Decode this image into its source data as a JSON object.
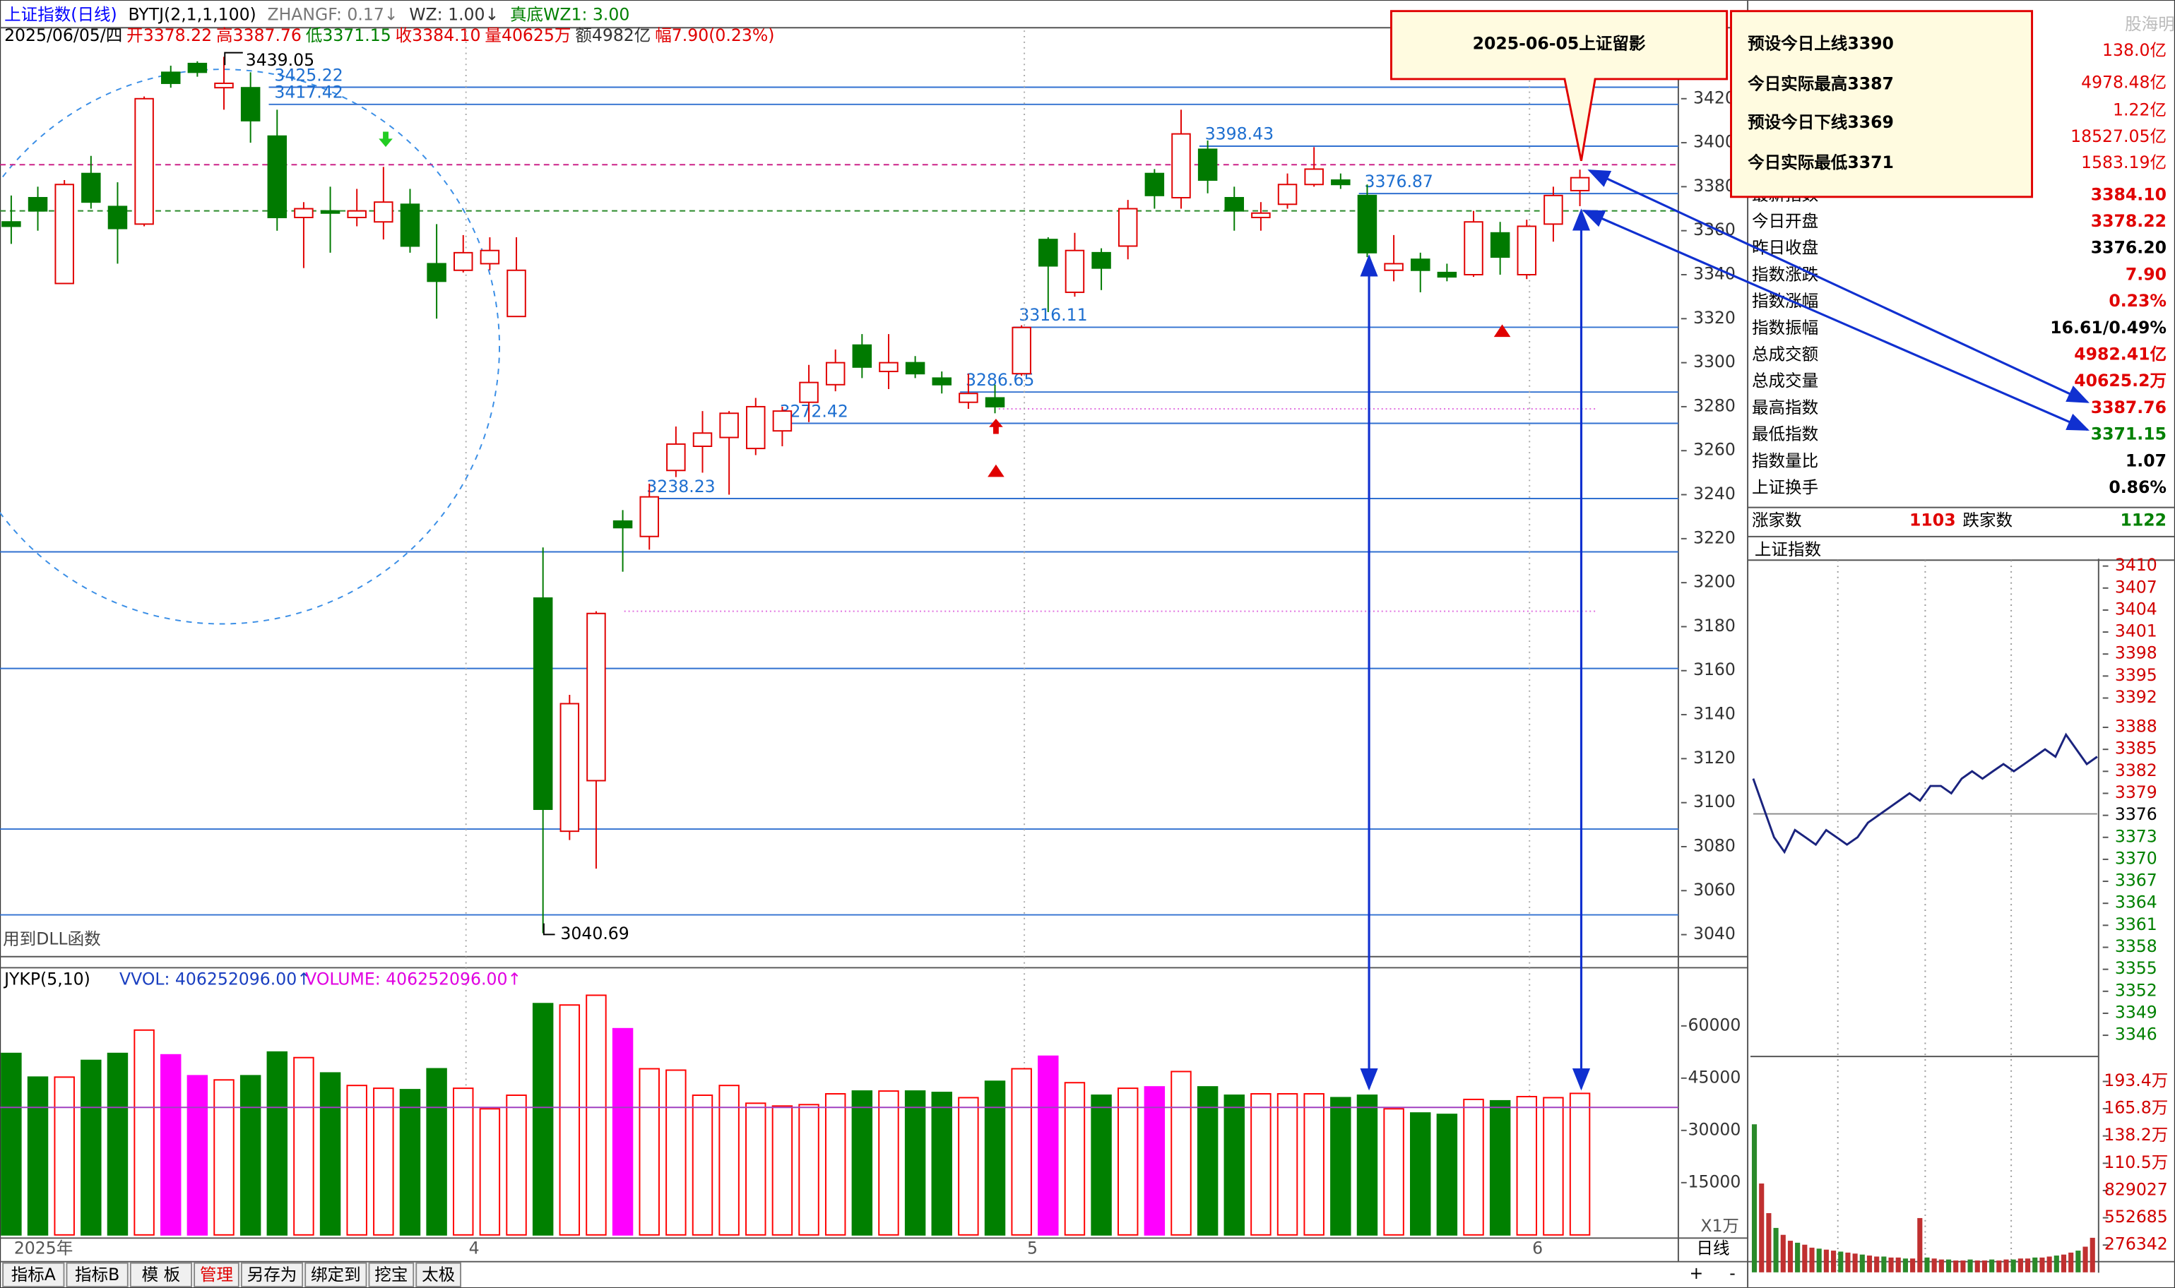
{
  "header": {
    "title": "上证指数(日线)",
    "indicators": [
      "BYTJ(2,1,1,100)",
      "ZHANGF: 0.17↓",
      "WZ: 1.00↓",
      "真底WZ1: 3.00"
    ],
    "date": "2025/06/05/四",
    "quote": [
      "开3378.22",
      "高3387.76",
      "低3371.15",
      "收3384.10",
      "量40625万",
      "额4982亿",
      "幅7.90(0.23%)"
    ],
    "dll_note": "用到DLL函数"
  },
  "annotation": {
    "title": "2025-06-05上证留影",
    "lines": [
      "预设今日上线3390",
      "今日实际最高3387",
      "预设今日下线3369",
      "今日实际最低3371"
    ]
  },
  "chart_data": [
    {
      "type": "candlestick",
      "open": [
        3364,
        3375,
        3336,
        3386,
        3371,
        3363,
        3432,
        3436,
        3425,
        3425,
        3403,
        3366,
        3369,
        3366,
        3364,
        3372,
        3345,
        3342,
        3345,
        3321,
        3193,
        3087,
        3110,
        3228,
        3221,
        3251,
        3262,
        3266,
        3261,
        3269,
        3282,
        3290,
        3308,
        3296,
        3300,
        3293,
        3282,
        3284,
        3295,
        3356,
        3332,
        3350,
        3353,
        3386,
        3375,
        3397,
        3375,
        3366,
        3372,
        3381,
        3383,
        3376,
        3342,
        3347,
        3341,
        3340,
        3359,
        3340,
        3363,
        3378.22
      ],
      "high": [
        3376,
        3380,
        3383,
        3394,
        3382,
        3421,
        3435,
        3437,
        3439.05,
        3432,
        3415,
        3373,
        3380,
        3379,
        3389,
        3379,
        3363,
        3358,
        3357,
        3357,
        3216,
        3149,
        3187,
        3233,
        3245,
        3271,
        3278,
        3278,
        3284,
        3280,
        3299,
        3306,
        3313,
        3313,
        3303,
        3296,
        3295,
        3290,
        3317,
        3357,
        3359,
        3352,
        3374,
        3388,
        3415,
        3401,
        3380,
        3373,
        3386,
        3398,
        3386,
        3381,
        3358,
        3350,
        3345,
        3369,
        3364,
        3365,
        3380,
        3387.76
      ],
      "low": [
        3354,
        3360,
        3336,
        3370,
        3345,
        3362,
        3425,
        3430,
        3415,
        3400,
        3360,
        3343,
        3350,
        3362,
        3356,
        3350,
        3320,
        3341,
        3342,
        3321,
        3040.69,
        3083,
        3070,
        3205,
        3215,
        3248,
        3250,
        3240,
        3258,
        3262,
        3273,
        3287,
        3293,
        3288,
        3293,
        3286,
        3279,
        3277,
        3294,
        3323,
        3330,
        3333,
        3347,
        3370,
        3370,
        3377,
        3360,
        3360,
        3370,
        3380,
        3379,
        3348,
        3337,
        3332,
        3337,
        3339,
        3340,
        3338,
        3355,
        3371.15
      ],
      "close": [
        3362,
        3369,
        3381,
        3373,
        3361,
        3420,
        3427,
        3432,
        3427,
        3410,
        3366,
        3370,
        3368,
        3369,
        3373,
        3353,
        3337,
        3350,
        3351,
        3342,
        3097,
        3145,
        3186,
        3225,
        3239,
        3263,
        3268,
        3277,
        3280,
        3278,
        3291,
        3300,
        3298,
        3300,
        3295,
        3290,
        3286,
        3280,
        3316,
        3344,
        3351,
        3343,
        3370,
        3376,
        3404,
        3383,
        3369,
        3368,
        3381,
        3388,
        3381,
        3350,
        3345,
        3342,
        3339,
        3364,
        3348,
        3362,
        3376,
        3384.1
      ],
      "up_color": "#e00000",
      "down_color": "#007a00",
      "ylim": [
        3030,
        3451
      ],
      "yticks": [
        3040,
        3060,
        3080,
        3100,
        3120,
        3140,
        3160,
        3180,
        3200,
        3220,
        3240,
        3260,
        3280,
        3300,
        3320,
        3340,
        3360,
        3380,
        3400,
        3420
      ],
      "level_lines": [
        3425.22,
        3417.42,
        3398.43,
        3376.87,
        3316.11,
        3286.65,
        3272.42,
        3238.23
      ],
      "plain_lines": [
        3214,
        3161,
        3088,
        3049
      ],
      "preset_lines": [
        3390,
        3369
      ],
      "preset_colors": [
        "#cc2288",
        "#2a8a2a"
      ],
      "dotted_lines": [
        3187,
        3279
      ],
      "x_labels": [
        "2025年",
        "4",
        "5",
        "6"
      ]
    },
    {
      "type": "bar",
      "title": "JYKP(5,10)",
      "legend": [
        "VVOL: 406252096.00↑",
        "VOLUME: 406252096.00↑"
      ],
      "unit": "X1万",
      "values": [
        52100,
        45300,
        45300,
        50100,
        52100,
        58800,
        51700,
        45700,
        44500,
        45700,
        52500,
        50900,
        46500,
        42900,
        42100,
        41700,
        47700,
        42100,
        36200,
        40100,
        66400,
        66000,
        68800,
        59200,
        47700,
        47300,
        40100,
        42900,
        37800,
        37000,
        37400,
        40500,
        41300,
        41300,
        41300,
        40900,
        39400,
        44100,
        47700,
        51300,
        43700,
        40100,
        42100,
        42500,
        46900,
        42500,
        40100,
        40500,
        40500,
        40500,
        39400,
        40100,
        36200,
        35000,
        34600,
        38900,
        38500,
        39700,
        39400,
        40625
      ],
      "colors": [
        "#008000",
        "#008000",
        "#ff0000",
        "#008000",
        "#008000",
        "#ff0000",
        "#ff00ff",
        "#ff00ff",
        "#ff0000",
        "#008000",
        "#008000",
        "#ff0000",
        "#008000",
        "#ff0000",
        "#ff0000",
        "#008000",
        "#008000",
        "#ff0000",
        "#ff0000",
        "#ff0000",
        "#008000",
        "#ff0000",
        "#ff0000",
        "#ff00ff",
        "#ff0000",
        "#ff0000",
        "#ff0000",
        "#ff0000",
        "#ff0000",
        "#ff0000",
        "#ff0000",
        "#ff0000",
        "#008000",
        "#ff0000",
        "#008000",
        "#008000",
        "#ff0000",
        "#008000",
        "#ff0000",
        "#ff00ff",
        "#ff0000",
        "#008000",
        "#ff0000",
        "#ff00ff",
        "#ff0000",
        "#008000",
        "#008000",
        "#ff0000",
        "#ff0000",
        "#ff0000",
        "#008000",
        "#008000",
        "#ff0000",
        "#008000",
        "#008000",
        "#ff0000",
        "#008000",
        "#ff0000",
        "#ff0000",
        "#ff0000"
      ],
      "ref_line": 36600,
      "ylim": [
        0,
        76700
      ],
      "yticks": [
        15000,
        30000,
        45000,
        60000
      ]
    },
    {
      "type": "line",
      "title": "上证指数",
      "color": "#1a237e",
      "values": [
        3381,
        3377,
        3373,
        3371,
        3374,
        3373,
        3372,
        3374,
        3373,
        3372,
        3373,
        3375,
        3376,
        3377,
        3378,
        3379,
        3378,
        3380,
        3380,
        3379,
        3381,
        3382,
        3381,
        3382,
        3383,
        3382,
        3383,
        3384,
        3385,
        3384,
        3387,
        3385,
        3383,
        3384
      ],
      "ref_line": 3376.2,
      "ylim": [
        3345,
        3411
      ],
      "yticks": [
        3410,
        3407,
        3404,
        3401,
        3398,
        3395,
        3392,
        3388,
        3385,
        3382,
        3379,
        3376,
        3373,
        3370,
        3367,
        3364,
        3361,
        3358,
        3355,
        3352,
        3349,
        3346
      ]
    },
    {
      "type": "bar",
      "color": "#c03030",
      "values": [
        1500000,
        900000,
        600000,
        450000,
        380000,
        320000,
        300000,
        280000,
        250000,
        240000,
        230000,
        220000,
        210000,
        200000,
        190000,
        180000,
        170000,
        160000,
        160000,
        150000,
        150000,
        140000,
        140000,
        550000,
        150000,
        140000,
        130000,
        130000,
        120000,
        120000,
        130000,
        120000,
        120000,
        130000,
        120000,
        130000,
        130000,
        140000,
        140000,
        150000,
        150000,
        160000,
        170000,
        180000,
        200000,
        220000,
        260000,
        350000
      ],
      "ylim": [
        0,
        2075000
      ],
      "yticks": [
        {
          "value": 1934000,
          "label": "193.4万"
        },
        {
          "value": 1658000,
          "label": "165.8万"
        },
        {
          "value": 1382000,
          "label": "138.2万"
        },
        {
          "value": 1105000,
          "label": "110.5万"
        },
        829027,
        552685,
        276342
      ]
    }
  ],
  "info_panel": {
    "watermark": "股海明灯",
    "top_values": [
      "138.0亿",
      "4978.48亿",
      "1.22亿",
      "18527.05亿",
      "1583.19亿"
    ],
    "rows": [
      {
        "label": "最新指数",
        "value": "3384.10",
        "color": "#e00000"
      },
      {
        "label": "今日开盘",
        "value": "3378.22",
        "color": "#e00000"
      },
      {
        "label": "昨日收盘",
        "value": "3376.20",
        "color": "#000000"
      },
      {
        "label": "指数涨跌",
        "value": "7.90",
        "color": "#e00000"
      },
      {
        "label": "指数涨幅",
        "value": "0.23%",
        "color": "#e00000"
      },
      {
        "label": "指数振幅",
        "value": "16.61/0.49%",
        "color": "#000000"
      },
      {
        "label": "总成交额",
        "value": "4982.41亿",
        "color": "#e00000"
      },
      {
        "label": "总成交量",
        "value": "40625.2万",
        "color": "#e00000"
      },
      {
        "label": "最高指数",
        "value": "3387.76",
        "color": "#e00000"
      },
      {
        "label": "最低指数",
        "value": "3371.15",
        "color": "#008000"
      },
      {
        "label": "指数量比",
        "value": "1.07",
        "color": "#000000"
      },
      {
        "label": "上证换手",
        "value": "0.86%",
        "color": "#000000"
      }
    ],
    "breadth": {
      "up_label": "涨家数",
      "up": "1103",
      "down_label": "跌家数",
      "down": "1122"
    }
  },
  "toolbar": {
    "tabs": [
      "指标A",
      "指标B",
      "模 板",
      "管理",
      "另存为",
      "绑定到",
      "挖宝",
      "太极"
    ],
    "period": "日线",
    "zoom": [
      "+",
      "-"
    ]
  }
}
